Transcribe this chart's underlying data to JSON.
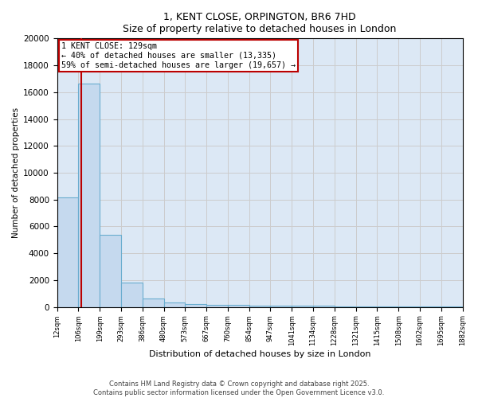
{
  "title_line1": "1, KENT CLOSE, ORPINGTON, BR6 7HD",
  "title_line2": "Size of property relative to detached houses in London",
  "xlabel": "Distribution of detached houses by size in London",
  "ylabel": "Number of detached properties",
  "tick_labels": [
    "12sqm",
    "106sqm",
    "199sqm",
    "293sqm",
    "386sqm",
    "480sqm",
    "573sqm",
    "667sqm",
    "760sqm",
    "854sqm",
    "947sqm",
    "1041sqm",
    "1134sqm",
    "1228sqm",
    "1321sqm",
    "1415sqm",
    "1508sqm",
    "1602sqm",
    "1695sqm",
    "1882sqm"
  ],
  "bar_heights": [
    8150,
    16650,
    5350,
    1800,
    650,
    350,
    220,
    180,
    150,
    120,
    100,
    85,
    70,
    60,
    50,
    40,
    40,
    35,
    30
  ],
  "bar_color": "#c5d9ee",
  "bar_edge_color": "#6aadcf",
  "vline_position": 1.15,
  "vline_color": "#bb0000",
  "annotation_text": "1 KENT CLOSE: 129sqm\n← 40% of detached houses are smaller (13,335)\n59% of semi-detached houses are larger (19,657) →",
  "annotation_box_color": "#bb0000",
  "ylim": [
    0,
    20000
  ],
  "yticks": [
    0,
    2000,
    4000,
    6000,
    8000,
    10000,
    12000,
    14000,
    16000,
    18000,
    20000
  ],
  "grid_color": "#cccccc",
  "background_color": "#dce8f5",
  "footer_text": "Contains HM Land Registry data © Crown copyright and database right 2025.\nContains public sector information licensed under the Open Government Licence v3.0.",
  "fig_width": 6.0,
  "fig_height": 5.0,
  "dpi": 100
}
